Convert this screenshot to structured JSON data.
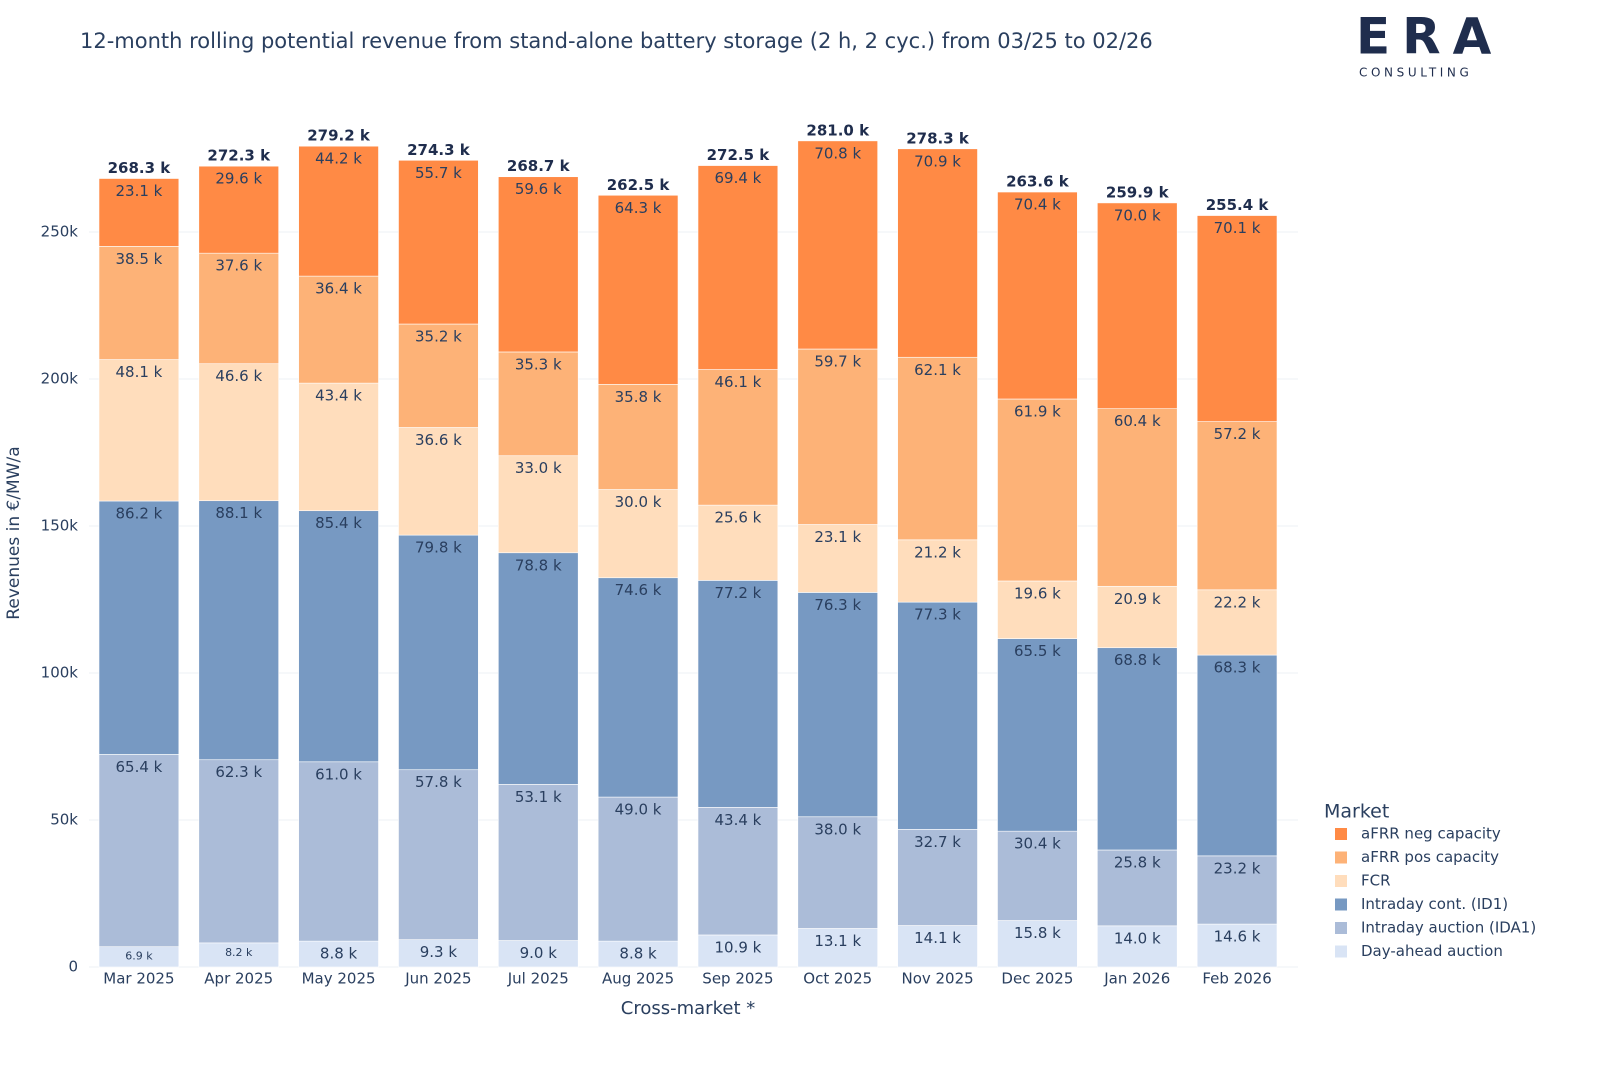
{
  "chart_data": {
    "type": "stacked-bar",
    "title": "12-month rolling potential revenue from stand-alone battery storage (2 h, 2 cyc.) from 03/25 to 02/26",
    "x_label": "Cross-market *",
    "y_label": "Revenues in €/MW/a",
    "legend_title": "Market",
    "categories": [
      "Mar 2025",
      "Apr 2025",
      "May 2025",
      "Jun 2025",
      "Jul 2025",
      "Aug 2025",
      "Sep 2025",
      "Oct 2025",
      "Nov 2025",
      "Dec 2025",
      "Jan 2026",
      "Feb 2026"
    ],
    "series": [
      {
        "name": "Day-ahead auction",
        "color": "#d9e4f5",
        "values": [
          6900,
          8200,
          8800,
          9300,
          9000,
          8800,
          10900,
          13100,
          14100,
          15800,
          14000,
          14600
        ],
        "value_labels": [
          "6.9 k",
          "8.2 k",
          "8.8 k",
          "9.3 k",
          "9.0 k",
          "8.8 k",
          "10.9 k",
          "13.1 k",
          "14.1 k",
          "15.8 k",
          "14.0 k",
          "14.6 k"
        ]
      },
      {
        "name": "Intraday auction (IDA1)",
        "color": "#abbcd8",
        "values": [
          65400,
          62300,
          61000,
          57800,
          53100,
          49000,
          43400,
          38000,
          32700,
          30400,
          25800,
          23200
        ],
        "value_labels": [
          "65.4 k",
          "62.3 k",
          "61.0 k",
          "57.8 k",
          "53.1 k",
          "49.0 k",
          "43.4 k",
          "38.0 k",
          "32.7 k",
          "30.4 k",
          "25.8 k",
          "23.2 k"
        ]
      },
      {
        "name": "Intraday cont. (ID1)",
        "color": "#7799c2",
        "values": [
          86200,
          88100,
          85400,
          79800,
          78800,
          74600,
          77200,
          76300,
          77300,
          65500,
          68800,
          68300
        ],
        "value_labels": [
          "86.2 k",
          "88.1 k",
          "85.4 k",
          "79.8 k",
          "78.8 k",
          "74.6 k",
          "77.2 k",
          "76.3 k",
          "77.3 k",
          "65.5 k",
          "68.8 k",
          "68.3 k"
        ]
      },
      {
        "name": "FCR",
        "color": "#ffddbc",
        "values": [
          48100,
          46600,
          43400,
          36600,
          33000,
          30000,
          25600,
          23100,
          21200,
          19600,
          20900,
          22200
        ],
        "value_labels": [
          "48.1 k",
          "46.6 k",
          "43.4 k",
          "36.6 k",
          "33.0 k",
          "30.0 k",
          "25.6 k",
          "23.1 k",
          "21.2 k",
          "19.6 k",
          "20.9 k",
          "22.2 k"
        ]
      },
      {
        "name": "aFRR pos capacity",
        "color": "#fdb277",
        "values": [
          38500,
          37600,
          36400,
          35200,
          35300,
          35800,
          46100,
          59700,
          62100,
          61900,
          60400,
          57200
        ],
        "value_labels": [
          "38.5 k",
          "37.6 k",
          "36.4 k",
          "35.2 k",
          "35.3 k",
          "35.8 k",
          "46.1 k",
          "59.7 k",
          "62.1 k",
          "61.9 k",
          "60.4 k",
          "57.2 k"
        ]
      },
      {
        "name": "aFRR neg capacity",
        "color": "#ff8a45",
        "values": [
          23100,
          29600,
          44200,
          55700,
          59600,
          64300,
          69400,
          70800,
          70900,
          70400,
          70000,
          70100
        ],
        "value_labels": [
          "23.1 k",
          "29.6 k",
          "44.2 k",
          "55.7 k",
          "59.6 k",
          "64.3 k",
          "69.4 k",
          "70.8 k",
          "70.9 k",
          "70.4 k",
          "70.0 k",
          "70.1 k"
        ]
      }
    ],
    "totals": {
      "values": [
        268300,
        272300,
        279200,
        274300,
        268700,
        262500,
        272500,
        281000,
        278300,
        263600,
        259900,
        255400
      ],
      "value_labels": [
        "268.3 k",
        "272.3 k",
        "279.2 k",
        "274.3 k",
        "268.7 k",
        "262.5 k",
        "272.5 k",
        "281.0 k",
        "278.3 k",
        "263.6 k",
        "259.9 k",
        "255.4 k"
      ]
    },
    "ylim": [
      0,
      291500
    ],
    "yticks": [
      0,
      {
        "value": 50000,
        "label": "50k"
      },
      {
        "value": 100000,
        "label": "100k"
      },
      {
        "value": 150000,
        "label": "150k"
      },
      {
        "value": 200000,
        "label": "200k"
      },
      {
        "value": 250000,
        "label": "250k"
      }
    ],
    "grid": true
  },
  "logo": {
    "name": "ERA",
    "subtitle": "CONSULTING"
  }
}
